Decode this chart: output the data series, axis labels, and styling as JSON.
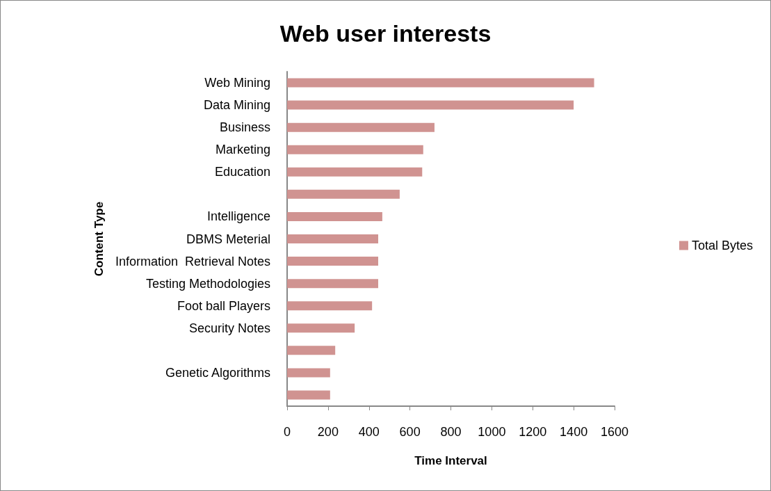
{
  "chart_data": {
    "type": "bar",
    "orientation": "horizontal",
    "title": "Web user interests",
    "xlabel": "Time Interval",
    "ylabel": "Content Type",
    "categories": [
      "Web Mining",
      "Data Mining",
      "Business",
      "Marketing",
      "Education",
      null,
      "Intelligence",
      "DBMS Meterial",
      "Information  Retrieval Notes",
      "Testing Methodologies",
      "Foot ball Players",
      "Security Notes",
      null,
      "Genetic Algorithms",
      null
    ],
    "series": [
      {
        "name": "Total Bytes",
        "color": "#d09391",
        "values": [
          1500,
          1400,
          720,
          665,
          660,
          550,
          465,
          445,
          445,
          445,
          415,
          330,
          235,
          210,
          210
        ]
      }
    ],
    "xlim": [
      0,
      1600
    ],
    "xticks": [
      0,
      200,
      400,
      600,
      800,
      1000,
      1200,
      1400,
      1600
    ],
    "grid": false,
    "legend": "right"
  }
}
